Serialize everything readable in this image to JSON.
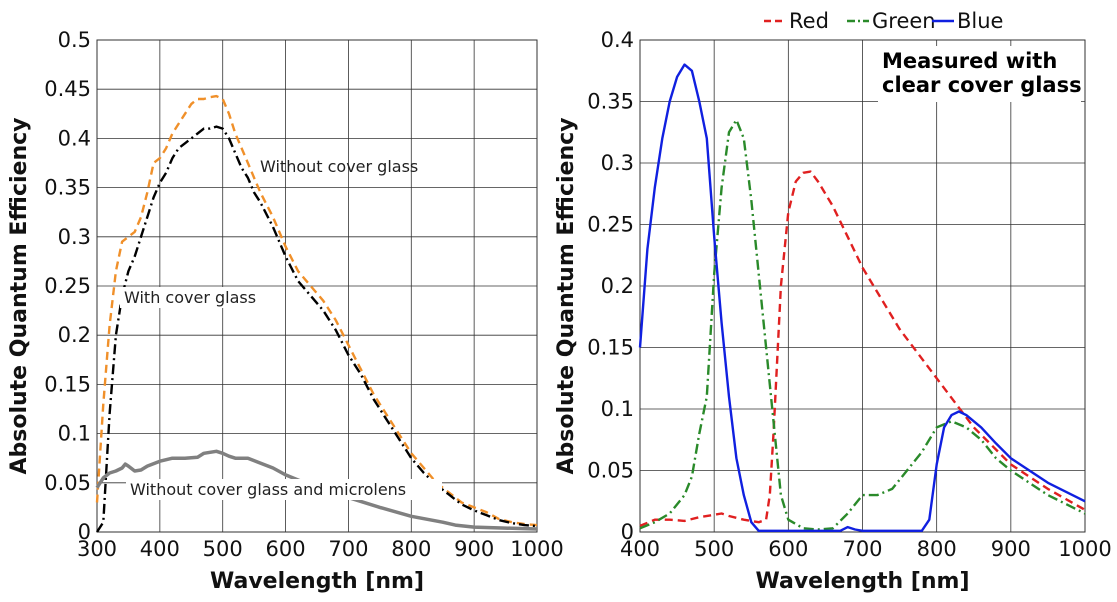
{
  "chart_data": [
    {
      "type": "line",
      "title": "",
      "xlabel": "Wavelength [nm]",
      "ylabel": "Absolute Quantum Efficiency",
      "xlim": [
        300,
        1000
      ],
      "ylim": [
        0,
        0.5
      ],
      "xticks": [
        "300",
        "400",
        "500",
        "600",
        "700",
        "800",
        "900",
        "1000"
      ],
      "yticks": [
        "0",
        "0.05",
        "0.1",
        "0.15",
        "0.2",
        "0.25",
        "0.3",
        "0.35",
        "0.4",
        "0.45",
        "0.5"
      ],
      "grid": true,
      "annotations": [
        "Without cover glass",
        "With cover glass",
        "Without cover glass and microlens"
      ],
      "series": [
        {
          "color": "#f0902a",
          "style": "dashed",
          "x": [
            300,
            310,
            320,
            330,
            340,
            350,
            360,
            370,
            380,
            390,
            400,
            410,
            420,
            430,
            440,
            450,
            460,
            470,
            480,
            490,
            500,
            510,
            520,
            530,
            540,
            550,
            560,
            580,
            600,
            620,
            640,
            660,
            680,
            700,
            720,
            740,
            760,
            780,
            800,
            820,
            840,
            860,
            880,
            900,
            920,
            940,
            960,
            980,
            1000
          ],
          "y": [
            0.03,
            0.13,
            0.21,
            0.265,
            0.295,
            0.3,
            0.305,
            0.32,
            0.345,
            0.375,
            0.38,
            0.39,
            0.405,
            0.415,
            0.425,
            0.435,
            0.44,
            0.44,
            0.442,
            0.443,
            0.44,
            0.425,
            0.405,
            0.39,
            0.375,
            0.36,
            0.345,
            0.32,
            0.29,
            0.265,
            0.25,
            0.235,
            0.215,
            0.19,
            0.165,
            0.14,
            0.12,
            0.1,
            0.08,
            0.065,
            0.05,
            0.04,
            0.03,
            0.025,
            0.02,
            0.013,
            0.01,
            0.008,
            0.007
          ]
        },
        {
          "color": "#000000",
          "style": "dash-dot",
          "x": [
            300,
            310,
            320,
            330,
            340,
            350,
            360,
            370,
            380,
            390,
            400,
            410,
            420,
            430,
            440,
            450,
            460,
            470,
            480,
            490,
            500,
            510,
            520,
            530,
            540,
            550,
            560,
            580,
            600,
            620,
            640,
            660,
            680,
            700,
            720,
            740,
            760,
            780,
            800,
            820,
            840,
            860,
            880,
            900,
            920,
            940,
            960,
            980,
            1000
          ],
          "y": [
            0.0,
            0.01,
            0.12,
            0.2,
            0.24,
            0.265,
            0.28,
            0.3,
            0.32,
            0.34,
            0.355,
            0.365,
            0.38,
            0.39,
            0.395,
            0.4,
            0.405,
            0.41,
            0.41,
            0.412,
            0.41,
            0.4,
            0.385,
            0.37,
            0.36,
            0.345,
            0.335,
            0.31,
            0.28,
            0.255,
            0.24,
            0.225,
            0.205,
            0.18,
            0.16,
            0.135,
            0.115,
            0.095,
            0.075,
            0.06,
            0.048,
            0.038,
            0.028,
            0.022,
            0.017,
            0.012,
            0.009,
            0.007,
            0.006
          ]
        },
        {
          "color": "#808080",
          "style": "solid",
          "x": [
            300,
            310,
            320,
            330,
            340,
            345,
            350,
            360,
            370,
            380,
            400,
            420,
            440,
            460,
            470,
            480,
            490,
            500,
            510,
            520,
            540,
            560,
            580,
            600,
            650,
            700,
            750,
            800,
            850,
            870,
            900,
            950,
            1000
          ],
          "y": [
            0.045,
            0.055,
            0.06,
            0.062,
            0.065,
            0.069,
            0.067,
            0.062,
            0.063,
            0.067,
            0.072,
            0.075,
            0.075,
            0.076,
            0.08,
            0.081,
            0.082,
            0.08,
            0.077,
            0.075,
            0.075,
            0.07,
            0.065,
            0.058,
            0.045,
            0.035,
            0.025,
            0.016,
            0.01,
            0.007,
            0.005,
            0.004,
            0.003
          ]
        }
      ]
    },
    {
      "type": "line",
      "title": "",
      "xlabel": "Wavelength [nm]",
      "ylabel": "Absolute Quantum Efficiency",
      "xlim": [
        400,
        1000
      ],
      "ylim": [
        0,
        0.4
      ],
      "xticks": [
        "400",
        "500",
        "600",
        "700",
        "800",
        "900",
        "1000"
      ],
      "yticks": [
        "0",
        "0.05",
        "0.1",
        "0.15",
        "0.2",
        "0.25",
        "0.3",
        "0.35",
        "0.4"
      ],
      "grid": true,
      "legend_placement": "top",
      "annotations": [
        "Measured with",
        "clear cover glass"
      ],
      "series": [
        {
          "name": "Red",
          "color": "#e02020",
          "style": "dashed",
          "x": [
            400,
            420,
            440,
            460,
            480,
            500,
            510,
            520,
            540,
            560,
            570,
            575,
            580,
            590,
            600,
            610,
            620,
            630,
            640,
            660,
            680,
            700,
            750,
            800,
            850,
            900,
            950,
            1000
          ],
          "y": [
            0.005,
            0.01,
            0.01,
            0.009,
            0.012,
            0.014,
            0.015,
            0.013,
            0.01,
            0.008,
            0.01,
            0.03,
            0.08,
            0.2,
            0.26,
            0.285,
            0.292,
            0.293,
            0.285,
            0.265,
            0.24,
            0.215,
            0.165,
            0.125,
            0.085,
            0.055,
            0.035,
            0.018
          ]
        },
        {
          "name": "Green",
          "color": "#2a8a2a",
          "style": "dash-dot",
          "x": [
            400,
            420,
            440,
            460,
            470,
            480,
            490,
            500,
            510,
            520,
            530,
            540,
            550,
            560,
            570,
            580,
            590,
            600,
            620,
            640,
            660,
            680,
            700,
            720,
            740,
            760,
            780,
            800,
            820,
            840,
            860,
            880,
            900,
            950,
            1000
          ],
          "y": [
            0.003,
            0.008,
            0.015,
            0.03,
            0.045,
            0.08,
            0.11,
            0.21,
            0.28,
            0.325,
            0.335,
            0.32,
            0.27,
            0.21,
            0.15,
            0.09,
            0.03,
            0.01,
            0.003,
            0.002,
            0.003,
            0.015,
            0.03,
            0.03,
            0.035,
            0.05,
            0.065,
            0.085,
            0.09,
            0.085,
            0.075,
            0.06,
            0.05,
            0.03,
            0.015
          ]
        },
        {
          "name": "Blue",
          "color": "#1020e0",
          "style": "solid",
          "x": [
            400,
            410,
            420,
            430,
            440,
            450,
            460,
            470,
            480,
            490,
            500,
            510,
            520,
            530,
            540,
            550,
            560,
            570,
            600,
            650,
            670,
            680,
            690,
            700,
            750,
            780,
            790,
            800,
            810,
            820,
            830,
            840,
            860,
            880,
            900,
            950,
            1000
          ],
          "y": [
            0.15,
            0.23,
            0.28,
            0.32,
            0.35,
            0.37,
            0.38,
            0.375,
            0.35,
            0.32,
            0.24,
            0.17,
            0.11,
            0.06,
            0.03,
            0.008,
            0.001,
            0.001,
            0.001,
            0.001,
            0.001,
            0.004,
            0.002,
            0.001,
            0.001,
            0.001,
            0.01,
            0.055,
            0.085,
            0.095,
            0.098,
            0.095,
            0.085,
            0.072,
            0.06,
            0.04,
            0.025
          ]
        }
      ]
    }
  ]
}
